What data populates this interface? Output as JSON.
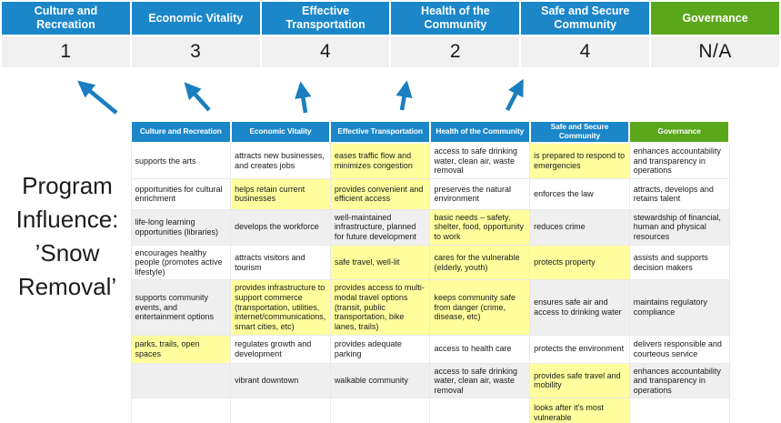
{
  "title": {
    "full": "Program Influence: ’Snow Removal’",
    "lines": [
      "Program",
      "Influence:",
      "’Snow",
      "Removal’"
    ]
  },
  "scoreboard": {
    "columns": [
      {
        "label": "Culture and Recreation",
        "score": "1",
        "color": "blue"
      },
      {
        "label": "Economic Vitality",
        "score": "3",
        "color": "blue"
      },
      {
        "label": "Effective Transportation",
        "score": "4",
        "color": "blue"
      },
      {
        "label": "Health of the Community",
        "score": "2",
        "color": "blue"
      },
      {
        "label": "Safe and Secure Community",
        "score": "4",
        "color": "blue"
      },
      {
        "label": "Governance",
        "score": "N/A",
        "color": "green"
      }
    ]
  },
  "matrix": {
    "headers": [
      {
        "label": "Culture and Recreation",
        "color": "blue"
      },
      {
        "label": "Economic Vitality",
        "color": "blue"
      },
      {
        "label": "Effective Transportation",
        "color": "blue"
      },
      {
        "label": "Health of the Community",
        "color": "blue"
      },
      {
        "label": "Safe and Secure Community",
        "color": "blue"
      },
      {
        "label": "Governance",
        "color": "green"
      }
    ],
    "rows": [
      {
        "cells": [
          {
            "text": "supports the arts",
            "bg": "white"
          },
          {
            "text": "attracts new businesses, and creates jobs",
            "bg": "white"
          },
          {
            "text": "eases traffic flow and minimizes congestion",
            "bg": "yellow"
          },
          {
            "text": "access to safe drinking water, clean air, waste removal",
            "bg": "white"
          },
          {
            "text": "is prepared to respond to emergencies",
            "bg": "yellow"
          },
          {
            "text": "enhances accountability and transparency in operations",
            "bg": "white"
          }
        ]
      },
      {
        "cells": [
          {
            "text": "opportunities for cultural enrichment",
            "bg": "white"
          },
          {
            "text": "helps retain current businesses",
            "bg": "yellow"
          },
          {
            "text": "provides convenient and efficient access",
            "bg": "yellow"
          },
          {
            "text": "preserves the natural environment",
            "bg": "white"
          },
          {
            "text": "enforces the law",
            "bg": "white"
          },
          {
            "text": "attracts, develops and retains talent",
            "bg": "white"
          }
        ]
      },
      {
        "cells": [
          {
            "text": "life-long learning opportunities (libraries)",
            "bg": "gray"
          },
          {
            "text": "develops the workforce",
            "bg": "gray"
          },
          {
            "text": "well-maintained infrastructure, planned for future development",
            "bg": "gray"
          },
          {
            "text": "basic needs – safety, shelter, food, opportunity to work",
            "bg": "yellow"
          },
          {
            "text": "reduces crime",
            "bg": "gray"
          },
          {
            "text": "stewardship of financial, human and physical resources",
            "bg": "gray"
          }
        ]
      },
      {
        "cells": [
          {
            "text": "encourages healthy people (promotes active lifestyle)",
            "bg": "white"
          },
          {
            "text": "attracts visitors and tourism",
            "bg": "white"
          },
          {
            "text": "safe travel, well-lit",
            "bg": "yellow"
          },
          {
            "text": "cares for the vulnerable (elderly, youth)",
            "bg": "yellow"
          },
          {
            "text": "protects property",
            "bg": "yellow"
          },
          {
            "text": "assists and supports decision makers",
            "bg": "white"
          }
        ]
      },
      {
        "cells": [
          {
            "text": "supports community events, and entertainment options",
            "bg": "gray"
          },
          {
            "text": "provides infrastructure to support commerce (transportation, utilities, internet/communications, smart cities, etc)",
            "bg": "yellow"
          },
          {
            "text": "provides access to multi-modal travel options (transit, public transportation, bike lanes, trails)",
            "bg": "yellow"
          },
          {
            "text": "keeps community safe from danger (crime, disease, etc)",
            "bg": "yellow"
          },
          {
            "text": "ensures safe air and access to drinking water",
            "bg": "gray"
          },
          {
            "text": "maintains regulatory compliance",
            "bg": "gray"
          }
        ]
      },
      {
        "cells": [
          {
            "text": "parks, trails, open spaces",
            "bg": "yellow"
          },
          {
            "text": "regulates growth and development",
            "bg": "white"
          },
          {
            "text": "provides adequate parking",
            "bg": "white"
          },
          {
            "text": "access to health care",
            "bg": "white"
          },
          {
            "text": "protects the environment",
            "bg": "white"
          },
          {
            "text": "delivers responsible and courteous service",
            "bg": "white"
          }
        ]
      },
      {
        "cells": [
          {
            "text": "",
            "bg": "gray"
          },
          {
            "text": "vibrant downtown",
            "bg": "gray"
          },
          {
            "text": "walkable community",
            "bg": "gray"
          },
          {
            "text": "access to safe drinking water, clean air, waste removal",
            "bg": "gray"
          },
          {
            "text": "provides safe travel and mobility",
            "bg": "yellow"
          },
          {
            "text": "enhances accountability and transparency in operations",
            "bg": "gray"
          }
        ]
      },
      {
        "cells": [
          {
            "text": "",
            "bg": "white"
          },
          {
            "text": "",
            "bg": "white"
          },
          {
            "text": "",
            "bg": "white"
          },
          {
            "text": "",
            "bg": "white"
          },
          {
            "text": "looks after it's most vulnerable",
            "bg": "yellow"
          },
          {
            "text": "",
            "bg": "white"
          }
        ]
      }
    ]
  },
  "colors": {
    "blue": "#1B87C9",
    "green": "#5AA71C",
    "yellow": "#FFFF9E",
    "white": "#FFFFFF",
    "gray": "#EFEFEF",
    "score_band": "#F1F1F1",
    "arrow": "#1B7EC0"
  }
}
